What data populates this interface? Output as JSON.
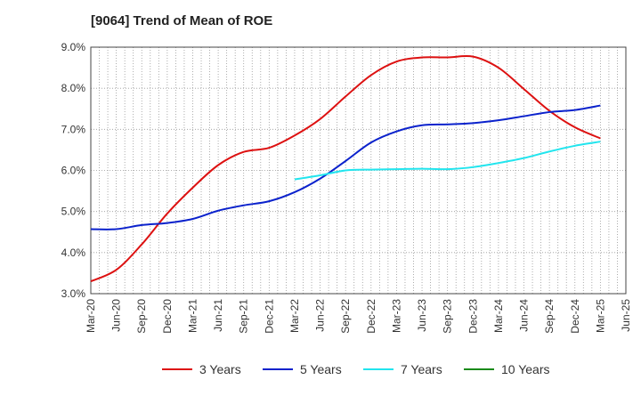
{
  "chart_data": {
    "type": "line",
    "title": "[9064]  Trend of Mean of ROE",
    "xlabel": "",
    "ylabel": "",
    "categories": [
      "Mar-20",
      "Jun-20",
      "Sep-20",
      "Dec-20",
      "Mar-21",
      "Jun-21",
      "Sep-21",
      "Dec-21",
      "Mar-22",
      "Jun-22",
      "Sep-22",
      "Dec-22",
      "Mar-23",
      "Jun-23",
      "Sep-23",
      "Dec-23",
      "Mar-24",
      "Jun-24",
      "Sep-24",
      "Dec-24",
      "Mar-25",
      "Jun-25"
    ],
    "y_ticks": [
      "3.0%",
      "4.0%",
      "5.0%",
      "6.0%",
      "7.0%",
      "8.0%",
      "9.0%"
    ],
    "ylim": [
      3.0,
      9.0
    ],
    "grid": true,
    "legend_position": "bottom",
    "series": [
      {
        "name": "3 Years",
        "color": "#dd1111",
        "values": [
          3.3,
          3.58,
          4.2,
          4.95,
          5.58,
          6.13,
          6.45,
          6.55,
          6.85,
          7.25,
          7.8,
          8.32,
          8.65,
          8.75,
          8.75,
          8.77,
          8.5,
          7.98,
          7.45,
          7.05,
          6.78,
          null
        ]
      },
      {
        "name": "5 Years",
        "color": "#0b22cc",
        "values": [
          4.57,
          4.57,
          4.67,
          4.72,
          4.82,
          5.02,
          5.15,
          5.25,
          5.47,
          5.8,
          6.23,
          6.68,
          6.95,
          7.1,
          7.12,
          7.15,
          7.22,
          7.32,
          7.42,
          7.47,
          7.58,
          null
        ]
      },
      {
        "name": "7 Years",
        "color": "#22e5ee",
        "values": [
          null,
          null,
          null,
          null,
          null,
          null,
          null,
          null,
          5.78,
          5.88,
          6.0,
          6.02,
          6.03,
          6.04,
          6.03,
          6.08,
          6.18,
          6.3,
          6.46,
          6.6,
          6.7,
          null
        ]
      },
      {
        "name": "10 Years",
        "color": "#1a8a1a",
        "values": [
          null,
          null,
          null,
          null,
          null,
          null,
          null,
          null,
          null,
          null,
          null,
          null,
          null,
          null,
          null,
          null,
          null,
          null,
          null,
          null,
          null,
          null
        ]
      }
    ]
  }
}
